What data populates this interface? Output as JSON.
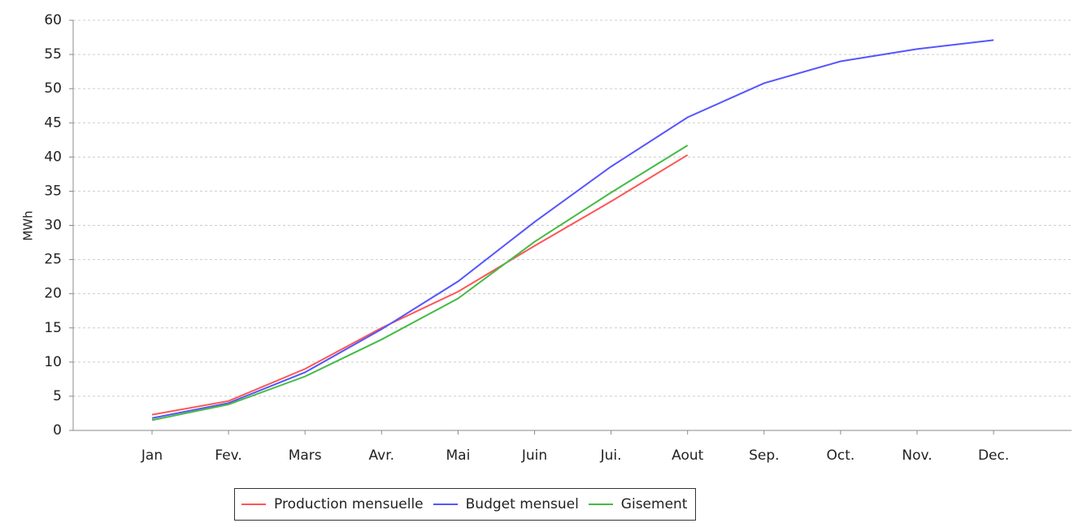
{
  "chart_data": {
    "type": "line",
    "y_label": "MWh",
    "categories": [
      "Jan",
      "Fev.",
      "Mars",
      "Avr.",
      "Mai",
      "Juin",
      "Jui.",
      "Aout",
      "Sep.",
      "Oct.",
      "Nov.",
      "Dec."
    ],
    "series": [
      {
        "name": "Production mensuelle",
        "color": "#ff5555",
        "values": [
          2.3,
          4.3,
          9.0,
          15.0,
          20.3,
          27.0,
          33.5,
          40.3,
          null,
          null,
          null,
          null
        ]
      },
      {
        "name": "Budget mensuel",
        "color": "#5555ff",
        "values": [
          1.8,
          4.0,
          8.5,
          14.8,
          21.8,
          30.5,
          38.6,
          45.8,
          50.8,
          54.0,
          55.8,
          57.1
        ]
      },
      {
        "name": "Gisement",
        "color": "#44bb44",
        "values": [
          1.5,
          3.8,
          7.9,
          13.3,
          19.3,
          27.6,
          34.8,
          41.7,
          null,
          null,
          null,
          null
        ]
      }
    ],
    "ylim": [
      0,
      60
    ],
    "yticks": [
      0,
      5,
      10,
      15,
      20,
      25,
      30,
      35,
      40,
      45,
      50,
      55,
      60
    ],
    "grid": true
  }
}
